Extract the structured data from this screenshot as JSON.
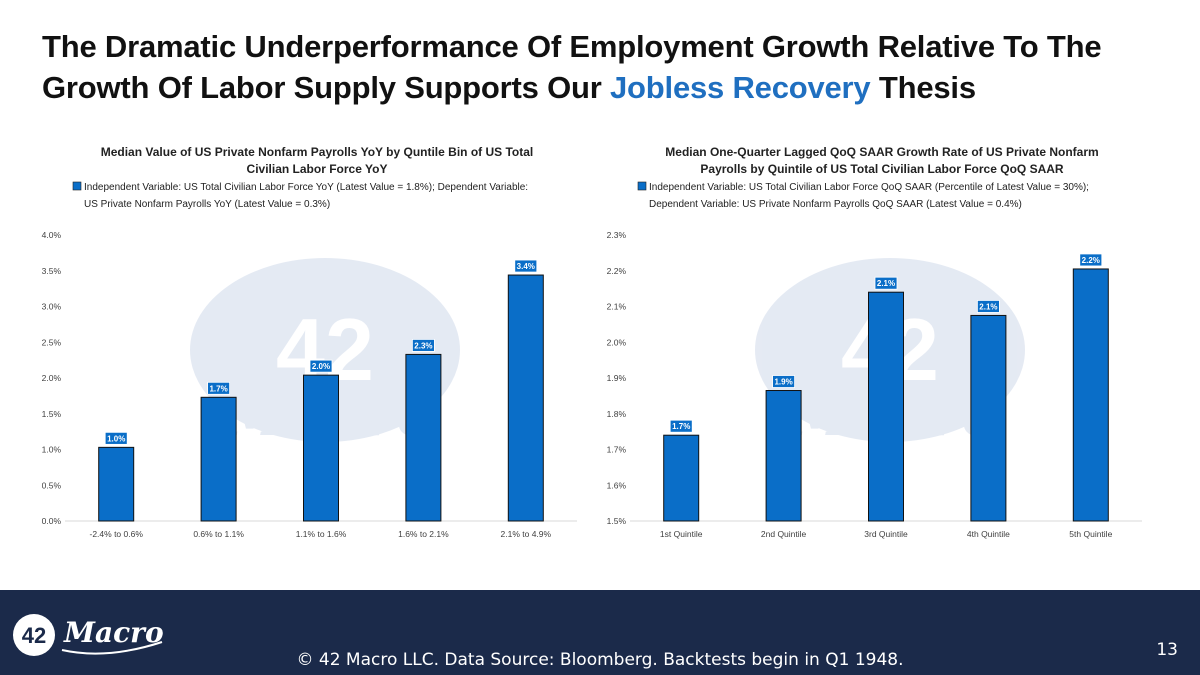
{
  "slide": {
    "title_part1": "The Dramatic Underperformance Of Employment Growth Relative To The Growth Of Labor Supply Supports Our ",
    "title_highlight": "Jobless Recovery",
    "title_part2": " Thesis",
    "footer_note": "© 42 Macro LLC. Data Source: Bloomberg. Backtests begin in Q1 1948.",
    "page_number": "13",
    "logo_number": "42",
    "logo_word": "Macro",
    "colors": {
      "accent": "#1f6fc0",
      "bar": "#0a6ec8",
      "footer": "#1b2a4a",
      "watermark": "#cfd9ea"
    }
  },
  "chart_data": [
    {
      "type": "bar",
      "title": [
        "Median Value of US Private Nonfarm Payrolls YoY by Quntile Bin of US Total",
        "Civilian Labor Force YoY"
      ],
      "legend": [
        "Independent Variable: US Total Civilian Labor Force YoY (Latest Value = 1.8%); Dependent Variable:",
        "US Private Nonfarm Payrolls YoY (Latest Value = 0.3%)"
      ],
      "legend_position": "top",
      "categories": [
        "-2.4% to 0.6%",
        "0.6% to 1.1%",
        "1.1% to 1.6%",
        "1.6% to 2.1%",
        "2.1% to 4.9%"
      ],
      "values": [
        1.03,
        1.73,
        2.04,
        2.33,
        3.44
      ],
      "data_labels": [
        "1.0%",
        "1.7%",
        "2.0%",
        "2.3%",
        "3.4%"
      ],
      "yticks": [
        "0.0%",
        "0.5%",
        "1.0%",
        "1.5%",
        "2.0%",
        "2.5%",
        "3.0%",
        "3.5%",
        "4.0%"
      ],
      "ylim": [
        0,
        4
      ],
      "ystep": 0.5,
      "grid": false,
      "xlabel": "",
      "ylabel": ""
    },
    {
      "type": "bar",
      "title": [
        "Median One-Quarter Lagged QoQ SAAR Growth Rate of US Private Nonfarm",
        "Payrolls by Quintile of US Total Civilian Labor Force QoQ SAAR"
      ],
      "legend": [
        "Independent Variable: US Total Civilian Labor Force QoQ SAAR (Percentile of Latest Value = 30%);",
        "Dependent Variable: US Private Nonfarm Payrolls QoQ SAAR (Latest Value = 0.4%)"
      ],
      "legend_position": "top",
      "categories": [
        "1st Quintile",
        "2nd Quintile",
        "3rd Quintile",
        "4th Quintile",
        "5th Quintile"
      ],
      "values": [
        1.74,
        1.865,
        2.14,
        2.075,
        2.205
      ],
      "data_labels": [
        "1.7%",
        "1.9%",
        "2.1%",
        "2.1%",
        "2.2%"
      ],
      "yticks": [
        "1.5%",
        "1.6%",
        "1.7%",
        "1.8%",
        "1.9%",
        "2.0%",
        "2.1%",
        "2.2%",
        "2.3%"
      ],
      "ylim": [
        1.5,
        2.3
      ],
      "ystep": 0.1,
      "grid": false,
      "xlabel": "",
      "ylabel": ""
    }
  ]
}
